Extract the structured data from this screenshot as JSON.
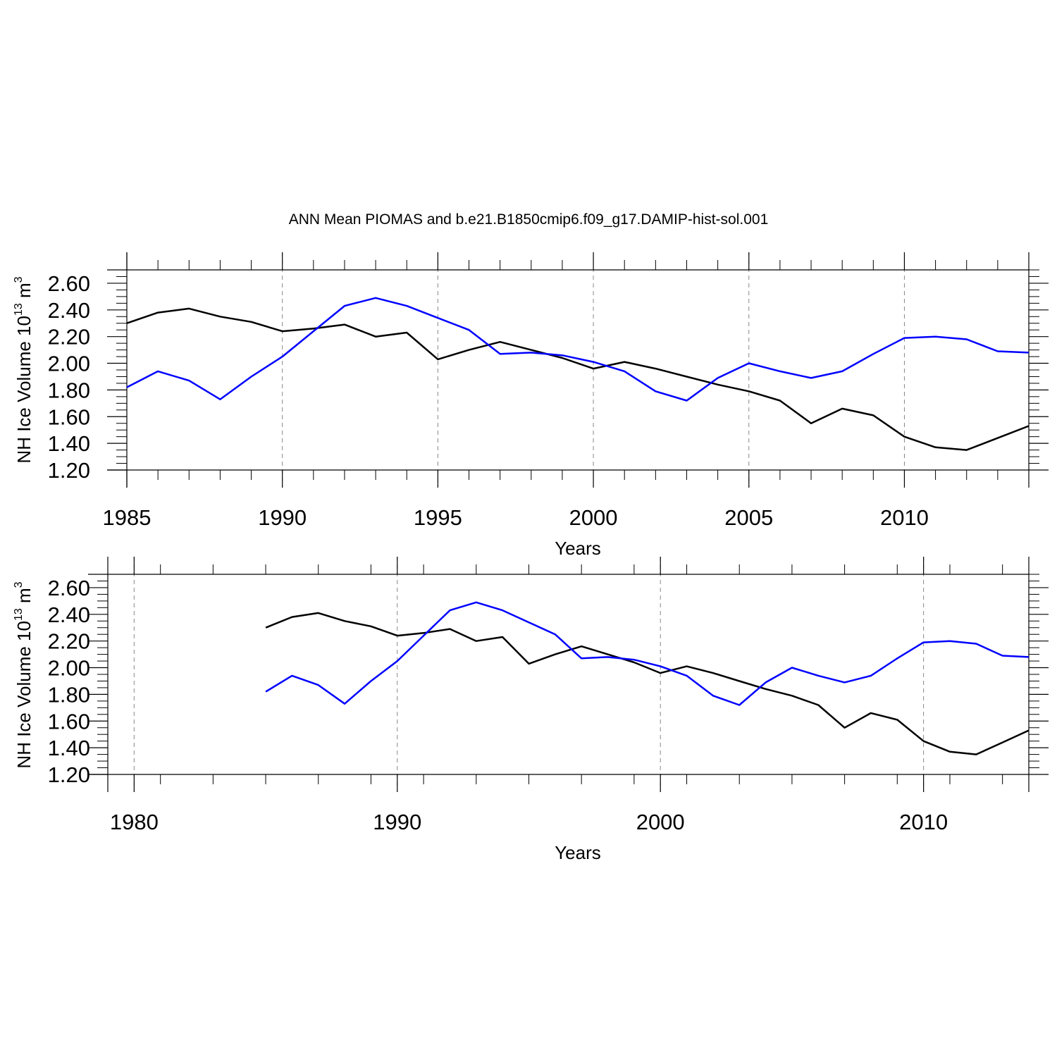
{
  "figure": {
    "title": "ANN Mean PIOMAS and b.e21.B1850cmip6.f09_g17.DAMIP-hist-sol.001"
  },
  "colors": {
    "piomas": "#000000",
    "model": "#0000ff",
    "grid": "#888888",
    "axis": "#000000"
  },
  "chart_data": [
    {
      "type": "line",
      "id": "top",
      "xlabel": "Years",
      "ylabel_text": "NH Ice Volume 10",
      "ylabel_exp": "13",
      "ylabel_unit": " m",
      "ylabel_unit_exp": "3",
      "xlim": [
        1985,
        2014
      ],
      "ylim": [
        1.2,
        2.7
      ],
      "x_major_ticks": [
        1985,
        1990,
        1995,
        2000,
        2005,
        2010
      ],
      "x_tick_labels": [
        "1985",
        "1990",
        "1995",
        "2000",
        "2005",
        "2010"
      ],
      "x_minor_step": 1,
      "x_grid": [
        1990,
        1995,
        2000,
        2005,
        2010
      ],
      "y_major_ticks": [
        1.2,
        1.4,
        1.6,
        1.8,
        2.0,
        2.2,
        2.4,
        2.6
      ],
      "y_tick_labels": [
        "1.20",
        "1.40",
        "1.60",
        "1.80",
        "2.00",
        "2.20",
        "2.40",
        "2.60"
      ],
      "y_minor_step": 0.05,
      "series": [
        {
          "name": "PIOMAS",
          "color": "#000000",
          "x": [
            1985,
            1986,
            1987,
            1988,
            1989,
            1990,
            1991,
            1992,
            1993,
            1994,
            1995,
            1996,
            1997,
            1998,
            1999,
            2000,
            2001,
            2002,
            2003,
            2004,
            2005,
            2006,
            2007,
            2008,
            2009,
            2010,
            2011,
            2012,
            2013,
            2014
          ],
          "values": [
            2.3,
            2.38,
            2.41,
            2.35,
            2.31,
            2.24,
            2.26,
            2.29,
            2.2,
            2.23,
            2.03,
            2.1,
            2.16,
            2.1,
            2.04,
            1.96,
            2.01,
            1.96,
            1.9,
            1.84,
            1.79,
            1.72,
            1.55,
            1.66,
            1.61,
            1.45,
            1.37,
            1.35,
            1.44,
            1.53
          ]
        },
        {
          "name": "b.e21.B1850cmip6.f09_g17.DAMIP-hist-sol.001",
          "color": "#0000ff",
          "x": [
            1985,
            1986,
            1987,
            1988,
            1989,
            1990,
            1991,
            1992,
            1993,
            1994,
            1995,
            1996,
            1997,
            1998,
            1999,
            2000,
            2001,
            2002,
            2003,
            2004,
            2005,
            2006,
            2007,
            2008,
            2009,
            2010,
            2011,
            2012,
            2013,
            2014
          ],
          "values": [
            1.82,
            1.94,
            1.87,
            1.73,
            1.9,
            2.05,
            2.24,
            2.43,
            2.49,
            2.43,
            2.34,
            2.25,
            2.07,
            2.08,
            2.06,
            2.01,
            1.94,
            1.79,
            1.72,
            1.89,
            2.0,
            1.94,
            1.89,
            1.94,
            2.07,
            2.19,
            2.2,
            2.18,
            2.09,
            2.08
          ]
        }
      ]
    },
    {
      "type": "line",
      "id": "bottom",
      "xlabel": "Years",
      "ylabel_text": "NH Ice Volume 10",
      "ylabel_exp": "13",
      "ylabel_unit": " m",
      "ylabel_unit_exp": "3",
      "xlim": [
        1979,
        2014
      ],
      "ylim": [
        1.2,
        2.7
      ],
      "x_major_ticks": [
        1980,
        1990,
        2000,
        2010
      ],
      "x_tick_labels": [
        "1980",
        "1990",
        "2000",
        "2010"
      ],
      "x_minor_step": 2,
      "x_grid": [
        1980,
        1990,
        2000,
        2010
      ],
      "y_major_ticks": [
        1.2,
        1.4,
        1.6,
        1.8,
        2.0,
        2.2,
        2.4,
        2.6
      ],
      "y_tick_labels": [
        "1.20",
        "1.40",
        "1.60",
        "1.80",
        "2.00",
        "2.20",
        "2.40",
        "2.60"
      ],
      "y_minor_step": 0.05,
      "series": [
        {
          "name": "PIOMAS",
          "color": "#000000",
          "x": [
            1985,
            1986,
            1987,
            1988,
            1989,
            1990,
            1991,
            1992,
            1993,
            1994,
            1995,
            1996,
            1997,
            1998,
            1999,
            2000,
            2001,
            2002,
            2003,
            2004,
            2005,
            2006,
            2007,
            2008,
            2009,
            2010,
            2011,
            2012,
            2013,
            2014
          ],
          "values": [
            2.3,
            2.38,
            2.41,
            2.35,
            2.31,
            2.24,
            2.26,
            2.29,
            2.2,
            2.23,
            2.03,
            2.1,
            2.16,
            2.1,
            2.04,
            1.96,
            2.01,
            1.96,
            1.9,
            1.84,
            1.79,
            1.72,
            1.55,
            1.66,
            1.61,
            1.45,
            1.37,
            1.35,
            1.44,
            1.53
          ]
        },
        {
          "name": "b.e21.B1850cmip6.f09_g17.DAMIP-hist-sol.001",
          "color": "#0000ff",
          "x": [
            1985,
            1986,
            1987,
            1988,
            1989,
            1990,
            1991,
            1992,
            1993,
            1994,
            1995,
            1996,
            1997,
            1998,
            1999,
            2000,
            2001,
            2002,
            2003,
            2004,
            2005,
            2006,
            2007,
            2008,
            2009,
            2010,
            2011,
            2012,
            2013,
            2014
          ],
          "values": [
            1.82,
            1.94,
            1.87,
            1.73,
            1.9,
            2.05,
            2.24,
            2.43,
            2.49,
            2.43,
            2.34,
            2.25,
            2.07,
            2.08,
            2.06,
            2.01,
            1.94,
            1.79,
            1.72,
            1.89,
            2.0,
            1.94,
            1.89,
            1.94,
            2.07,
            2.19,
            2.2,
            2.18,
            2.09,
            2.08
          ]
        }
      ]
    }
  ]
}
